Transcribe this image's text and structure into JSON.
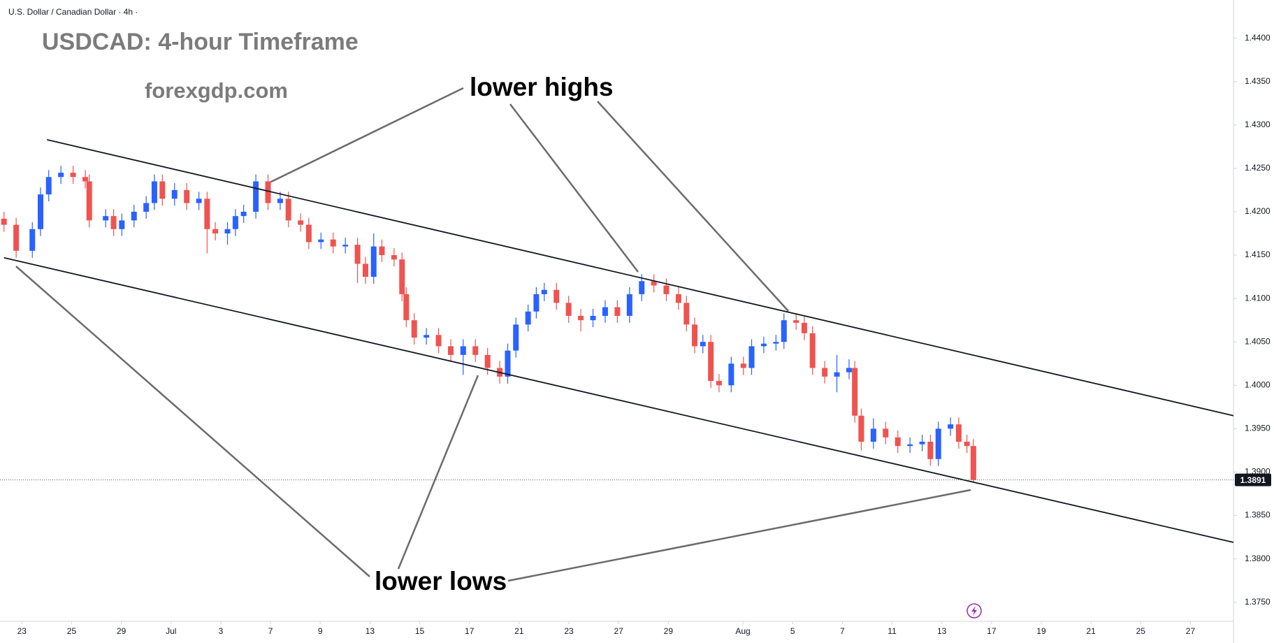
{
  "chart_data": {
    "type": "candlestick",
    "header": "U.S. Dollar / Canadian Dollar · 4h ·",
    "title": "USDCAD: 4-hour Timeframe",
    "subtitle": "forexgdp.com",
    "annotations": [
      "lower highs",
      "lower lows"
    ],
    "up_color": "#2962ff",
    "down_color": "#ef5350",
    "x": [
      -0.72,
      -0.23,
      0.42,
      0.75,
      1.08,
      1.57,
      2.06,
      2.55,
      2.71,
      3.37,
      3.69,
      4.02,
      4.51,
      5.0,
      5.33,
      5.65,
      6.14,
      6.63,
      7.12,
      7.45,
      7.78,
      8.27,
      8.59,
      8.92,
      9.41,
      9.9,
      10.39,
      10.72,
      11.21,
      11.54,
      12.03,
      12.52,
      13.01,
      13.5,
      13.82,
      14.15,
      14.48,
      14.97,
      15.29,
      15.46,
      15.78,
      16.27,
      16.76,
      17.25,
      17.75,
      18.24,
      18.73,
      19.22,
      19.54,
      19.87,
      20.36,
      20.69,
      21.01,
      21.5,
      21.99,
      22.48,
      22.97,
      23.46,
      23.95,
      24.44,
      24.93,
      25.42,
      25.92,
      26.41,
      26.73,
      27.06,
      27.39,
      27.71,
      28.04,
      28.53,
      29.02,
      29.35,
      29.84,
      30.33,
      30.65,
      31.14,
      31.47,
      31.8,
      32.29,
      32.78,
      33.27,
      33.5,
      33.76,
      34.25,
      34.74,
      35.23,
      35.72,
      36.21,
      36.54,
      36.86,
      37.35,
      37.68,
      38.01,
      38.27
    ],
    "open": [
      1.4192,
      1.4185,
      1.4155,
      1.418,
      1.422,
      1.424,
      1.4245,
      1.424,
      1.4235,
      1.419,
      1.4195,
      1.418,
      1.419,
      1.42,
      1.421,
      1.4235,
      1.4215,
      1.4225,
      1.421,
      1.4215,
      1.418,
      1.4175,
      1.418,
      1.4195,
      1.42,
      1.4235,
      1.421,
      1.4215,
      1.419,
      1.4185,
      1.4165,
      1.4168,
      1.416,
      1.4162,
      1.414,
      1.4125,
      1.416,
      1.415,
      1.4145,
      1.4105,
      1.4075,
      1.4055,
      1.4058,
      1.4045,
      1.4035,
      1.4045,
      1.4035,
      1.402,
      1.401,
      1.404,
      1.407,
      1.4085,
      1.4105,
      1.411,
      1.4095,
      1.408,
      1.4075,
      1.408,
      1.409,
      1.408,
      1.4105,
      1.412,
      1.4115,
      1.4105,
      1.4095,
      1.407,
      1.4045,
      1.405,
      1.4005,
      1.4,
      1.4025,
      1.402,
      1.4045,
      1.4048,
      1.405,
      1.4075,
      1.4072,
      1.406,
      1.402,
      1.401,
      1.4015,
      1.402,
      1.3965,
      1.3935,
      1.395,
      1.394,
      1.393,
      1.3932,
      1.3935,
      1.3915,
      1.395,
      1.3955,
      1.3935,
      1.393
    ],
    "high": [
      1.42,
      1.4193,
      1.4188,
      1.4228,
      1.4248,
      1.4253,
      1.4253,
      1.4248,
      1.4243,
      1.4203,
      1.4203,
      1.4198,
      1.4208,
      1.4218,
      1.4243,
      1.4243,
      1.4233,
      1.4233,
      1.4223,
      1.4223,
      1.4188,
      1.4188,
      1.4203,
      1.4208,
      1.4243,
      1.4243,
      1.4223,
      1.4223,
      1.4198,
      1.4193,
      1.4176,
      1.4176,
      1.417,
      1.417,
      1.4148,
      1.4175,
      1.4168,
      1.4158,
      1.4153,
      1.4113,
      1.4083,
      1.4066,
      1.4066,
      1.4053,
      1.4053,
      1.4053,
      1.4043,
      1.4028,
      1.4048,
      1.4078,
      1.4093,
      1.4113,
      1.4118,
      1.4118,
      1.4103,
      1.4088,
      1.4088,
      1.4098,
      1.4098,
      1.4113,
      1.4128,
      1.4128,
      1.4123,
      1.4113,
      1.4103,
      1.4078,
      1.4058,
      1.4058,
      1.4013,
      1.4033,
      1.4033,
      1.4053,
      1.4056,
      1.4058,
      1.4083,
      1.4083,
      1.408,
      1.4068,
      1.4028,
      1.4035,
      1.403,
      1.4028,
      1.3973,
      1.3962,
      1.3958,
      1.3948,
      1.394,
      1.3943,
      1.3943,
      1.3958,
      1.3963,
      1.3963,
      1.3943,
      1.3938
    ],
    "low": [
      1.4177,
      1.4147,
      1.4147,
      1.4172,
      1.4212,
      1.4232,
      1.4232,
      1.4227,
      1.4182,
      1.4182,
      1.4172,
      1.4172,
      1.4182,
      1.4192,
      1.4202,
      1.4207,
      1.4207,
      1.4202,
      1.4202,
      1.4152,
      1.4167,
      1.4162,
      1.4172,
      1.4187,
      1.4192,
      1.4202,
      1.4202,
      1.4182,
      1.4177,
      1.4157,
      1.4157,
      1.4152,
      1.4152,
      1.4118,
      1.4117,
      1.4117,
      1.4142,
      1.4137,
      1.4097,
      1.4067,
      1.4047,
      1.4047,
      1.4037,
      1.4027,
      1.4012,
      1.4027,
      1.4012,
      1.4002,
      1.4002,
      1.4032,
      1.4062,
      1.4077,
      1.4097,
      1.4087,
      1.4072,
      1.4062,
      1.4067,
      1.4072,
      1.4072,
      1.4072,
      1.4097,
      1.4107,
      1.4097,
      1.4087,
      1.4062,
      1.4037,
      1.4037,
      1.3997,
      1.3992,
      1.3992,
      1.4012,
      1.4012,
      1.4037,
      1.404,
      1.4042,
      1.4064,
      1.4052,
      1.4012,
      1.4002,
      1.3992,
      1.4007,
      1.3957,
      1.3925,
      1.3927,
      1.3932,
      1.3922,
      1.3922,
      1.3924,
      1.3907,
      1.3907,
      1.3942,
      1.3927,
      1.3922,
      1.3888
    ],
    "close": [
      1.4185,
      1.4155,
      1.418,
      1.422,
      1.424,
      1.4245,
      1.424,
      1.4235,
      1.419,
      1.4195,
      1.418,
      1.419,
      1.42,
      1.421,
      1.4235,
      1.4215,
      1.4225,
      1.421,
      1.4215,
      1.418,
      1.4175,
      1.418,
      1.4195,
      1.42,
      1.4235,
      1.421,
      1.4215,
      1.419,
      1.4185,
      1.4165,
      1.4168,
      1.416,
      1.4162,
      1.414,
      1.4125,
      1.416,
      1.415,
      1.4145,
      1.4105,
      1.4075,
      1.4055,
      1.4058,
      1.4045,
      1.4035,
      1.4045,
      1.4035,
      1.402,
      1.401,
      1.404,
      1.407,
      1.4085,
      1.4105,
      1.411,
      1.4095,
      1.408,
      1.4075,
      1.408,
      1.409,
      1.408,
      1.4105,
      1.412,
      1.4115,
      1.4105,
      1.4095,
      1.407,
      1.4045,
      1.405,
      1.4005,
      1.4,
      1.4025,
      1.402,
      1.4045,
      1.4048,
      1.405,
      1.4075,
      1.4072,
      1.406,
      1.402,
      1.401,
      1.4015,
      1.402,
      1.3965,
      1.3935,
      1.395,
      1.394,
      1.393,
      1.3932,
      1.3935,
      1.3915,
      1.395,
      1.3955,
      1.3935,
      1.393,
      1.3891
    ],
    "last_price": 1.3891,
    "trend_lines": [
      {
        "x": [
          1.01,
          48.73
        ],
        "y": [
          1.4283,
          1.3965
        ]
      },
      {
        "x": [
          -0.72,
          48.73
        ],
        "y": [
          1.4147,
          1.3819
        ]
      }
    ],
    "xlim": [
      -0.88,
      48.73
    ],
    "ylim": [
      1.3728,
      1.4444
    ],
    "xticks": [
      {
        "value": 0,
        "label": "23"
      },
      {
        "value": 2,
        "label": "25"
      },
      {
        "value": 4,
        "label": "29"
      },
      {
        "value": 6,
        "label": "Jul"
      },
      {
        "value": 8,
        "label": "3"
      },
      {
        "value": 10,
        "label": "7"
      },
      {
        "value": 12,
        "label": "9"
      },
      {
        "value": 14,
        "label": "13"
      },
      {
        "value": 16,
        "label": "15"
      },
      {
        "value": 18,
        "label": "17"
      },
      {
        "value": 20,
        "label": "21"
      },
      {
        "value": 22,
        "label": "23"
      },
      {
        "value": 24,
        "label": "27"
      },
      {
        "value": 26,
        "label": "29"
      },
      {
        "value": 29,
        "label": "Aug"
      },
      {
        "value": 31,
        "label": "5"
      },
      {
        "value": 33,
        "label": "7"
      },
      {
        "value": 35,
        "label": "11"
      },
      {
        "value": 37,
        "label": "13"
      },
      {
        "value": 39,
        "label": "17"
      },
      {
        "value": 41,
        "label": "19"
      },
      {
        "value": 43,
        "label": "21"
      },
      {
        "value": 45,
        "label": "25"
      },
      {
        "value": 47,
        "label": "27"
      }
    ],
    "yticks": [
      {
        "value": 1.375,
        "label": "1.3750"
      },
      {
        "value": 1.38,
        "label": "1.3800"
      },
      {
        "value": 1.385,
        "label": "1.3850"
      },
      {
        "value": 1.39,
        "label": "1.3900"
      },
      {
        "value": 1.395,
        "label": "1.3950"
      },
      {
        "value": 1.4,
        "label": "1.4000"
      },
      {
        "value": 1.405,
        "label": "1.4050"
      },
      {
        "value": 1.41,
        "label": "1.4100"
      },
      {
        "value": 1.415,
        "label": "1.4150"
      },
      {
        "value": 1.42,
        "label": "1.4200"
      },
      {
        "value": 1.425,
        "label": "1.4250"
      },
      {
        "value": 1.43,
        "label": "1.4300"
      },
      {
        "value": 1.435,
        "label": "1.4350"
      },
      {
        "value": 1.44,
        "label": "1.4400"
      }
    ]
  }
}
